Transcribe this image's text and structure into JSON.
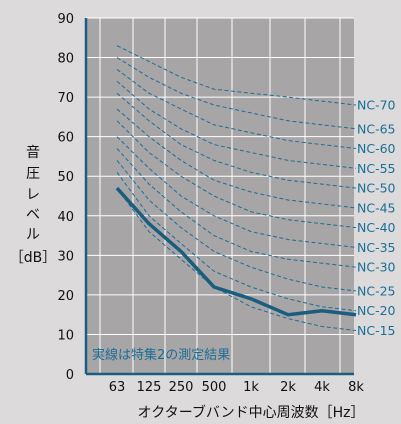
{
  "chart_data": {
    "type": "line",
    "x": [
      "63",
      "125",
      "250",
      "500",
      "1k",
      "2k",
      "4k",
      "8k"
    ],
    "xlabel": "オクターブバンド中心周波数［Hz］",
    "ylabel_lines": [
      "音",
      "圧",
      "レ",
      "ベ",
      "ル"
    ],
    "ylabel_unit": "［dB］",
    "ylim": [
      0,
      90
    ],
    "yticks": [
      0,
      10,
      20,
      30,
      40,
      50,
      60,
      70,
      80,
      90
    ],
    "grid": true,
    "annotation": "実線は特集2の測定結果",
    "series": [
      {
        "name": "NC-70",
        "style": "dashed",
        "values": [
          83,
          79,
          75,
          72,
          71,
          70,
          69,
          68
        ]
      },
      {
        "name": "NC-65",
        "style": "dashed",
        "values": [
          80,
          75,
          71,
          68,
          66,
          64,
          63,
          62
        ]
      },
      {
        "name": "NC-60",
        "style": "dashed",
        "values": [
          77,
          71,
          67,
          63,
          61,
          59,
          58,
          57
        ]
      },
      {
        "name": "NC-55",
        "style": "dashed",
        "values": [
          74,
          67,
          62,
          58,
          56,
          54,
          53,
          52
        ]
      },
      {
        "name": "NC-50",
        "style": "dashed",
        "values": [
          71,
          64,
          58,
          54,
          51,
          49,
          48,
          47
        ]
      },
      {
        "name": "NC-45",
        "style": "dashed",
        "values": [
          67,
          60,
          54,
          49,
          46,
          44,
          43,
          42
        ]
      },
      {
        "name": "NC-40",
        "style": "dashed",
        "values": [
          64,
          56,
          50,
          45,
          41,
          39,
          38,
          37
        ]
      },
      {
        "name": "NC-35",
        "style": "dashed",
        "values": [
          60,
          52,
          45,
          40,
          36,
          34,
          33,
          32
        ]
      },
      {
        "name": "NC-30",
        "style": "dashed",
        "values": [
          57,
          48,
          41,
          35,
          31,
          29,
          28,
          27
        ]
      },
      {
        "name": "NC-25",
        "style": "dashed",
        "values": [
          54,
          44,
          37,
          31,
          27,
          24,
          22,
          21
        ]
      },
      {
        "name": "NC-20",
        "style": "dashed",
        "values": [
          51,
          40,
          33,
          26,
          22,
          19,
          17,
          16
        ]
      },
      {
        "name": "NC-15",
        "style": "dashed",
        "values": [
          47,
          36,
          29,
          22,
          17,
          14,
          12,
          11
        ]
      },
      {
        "name": "",
        "style": "solid",
        "values": [
          47,
          38,
          31,
          22,
          19,
          15,
          16,
          15
        ]
      }
    ]
  },
  "colors": {
    "background": "#dcdada",
    "plot_bg": "#a8a5a6",
    "grid": "#ffffff",
    "nc_curve": "#1a6f97",
    "measured": "#1b5d7e",
    "axis": "#1a5f82"
  }
}
